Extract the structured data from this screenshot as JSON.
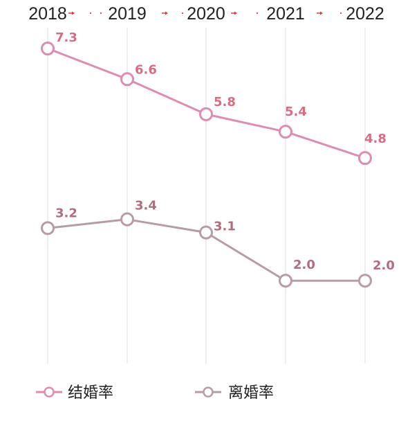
{
  "chart_data": {
    "type": "line",
    "x": [
      "2018",
      "2019",
      "2020",
      "2021",
      "2022"
    ],
    "series": [
      {
        "name": "结婚率",
        "values": [
          7.3,
          6.6,
          5.8,
          5.4,
          4.8
        ],
        "labels": [
          "7.3",
          "6.6",
          "5.8",
          "5.4",
          "4.8"
        ],
        "color": "#e08bb2",
        "label_color": "#d86c83"
      },
      {
        "name": "离婚率",
        "values": [
          3.2,
          3.4,
          3.1,
          2.0,
          2.0
        ],
        "labels": [
          "3.2",
          "3.4",
          "3.1",
          "2.0",
          "2.0"
        ],
        "color": "#b99ba8",
        "label_color": "#b56b7e"
      }
    ],
    "title": "",
    "xlabel": "",
    "ylabel": "",
    "ylim": [
      1,
      8
    ],
    "grid": "vertical",
    "legend": "bottom",
    "axis_arrow_color": "#e23b2f",
    "grid_color": "#e5e5e5"
  }
}
